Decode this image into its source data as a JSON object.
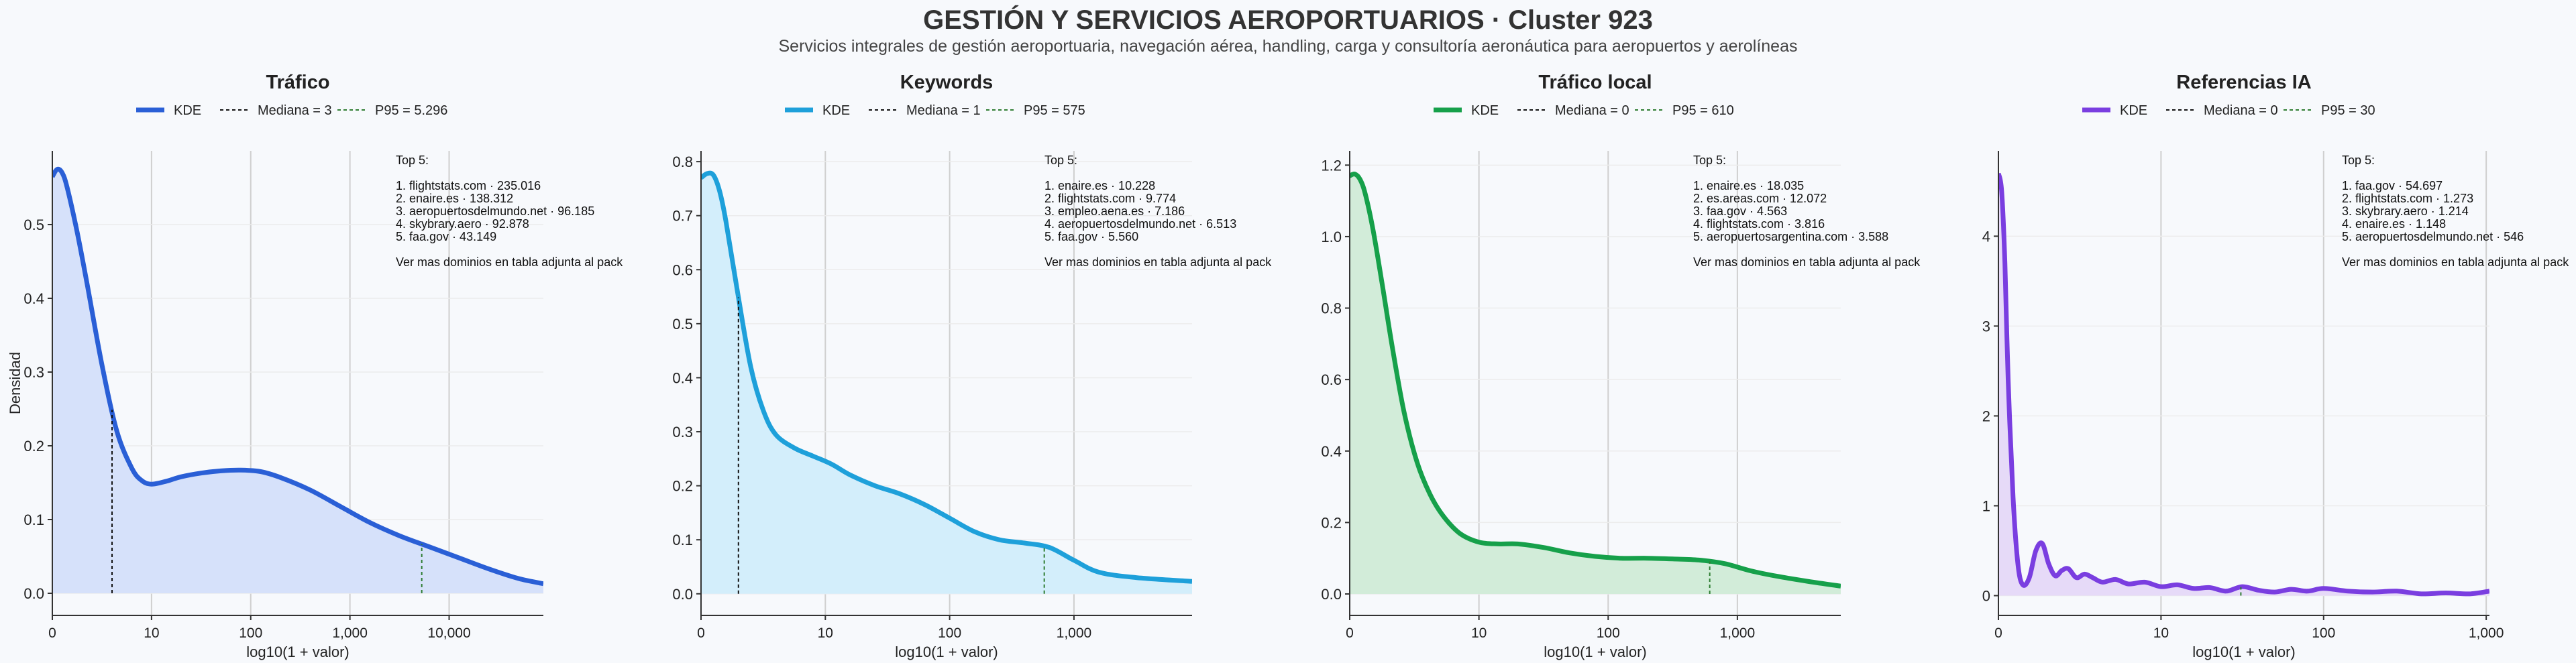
{
  "title": "GESTIÓN Y SERVICIOS AEROPORTUARIOS · Cluster 923",
  "subtitle": "Servicios integrales de gestión aeroportuaria, navegación aérea, handling, carga y consultoría aeronáutica para aeropuertos y aerolíneas",
  "chart_data": [
    {
      "type": "area",
      "title": "Tráfico",
      "color": "#2a5fd6",
      "fill": "#d6e1fa",
      "xlabel": "log10(1 + valor)",
      "ylabel": "Densidad",
      "xlim": [
        0,
        4.95
      ],
      "ylim": [
        -0.03,
        0.6
      ],
      "xticks": [
        0,
        1,
        2,
        3,
        4
      ],
      "xtick_labels": [
        "0",
        "10",
        "100",
        "1,000",
        "10,000"
      ],
      "yticks": [
        0.0,
        0.1,
        0.2,
        0.3,
        0.4,
        0.5
      ],
      "ytick_labels": [
        "0.0",
        "0.1",
        "0.2",
        "0.3",
        "0.4",
        "0.5"
      ],
      "legend": {
        "kde": "KDE",
        "median": "Mediana = 3",
        "p95": "P95 = 5.296"
      },
      "median_x": 0.602,
      "p95_x": 3.724,
      "x": [
        0,
        0.05,
        0.1,
        0.15,
        0.25,
        0.35,
        0.5,
        0.65,
        0.8,
        0.9,
        1.0,
        1.15,
        1.3,
        1.5,
        1.7,
        1.9,
        2.1,
        2.3,
        2.6,
        2.9,
        3.2,
        3.5,
        3.8,
        4.1,
        4.4,
        4.7,
        4.95
      ],
      "y": [
        0.565,
        0.575,
        0.57,
        0.55,
        0.49,
        0.42,
        0.31,
        0.22,
        0.17,
        0.153,
        0.148,
        0.152,
        0.158,
        0.163,
        0.166,
        0.167,
        0.165,
        0.157,
        0.14,
        0.118,
        0.096,
        0.078,
        0.063,
        0.048,
        0.033,
        0.02,
        0.013
      ],
      "top_header": "Top 5:",
      "top": [
        "1. flightstats.com · 235.016",
        "2. enaire.es · 138.312",
        "3. aeropuertosdelmundo.net · 96.185",
        "4. skybrary.aero · 92.878",
        "5. faa.gov · 43.149"
      ],
      "note": "Ver mas dominios en tabla adjunta al pack"
    },
    {
      "type": "area",
      "title": "Keywords",
      "color": "#1ea0da",
      "fill": "#d3eefb",
      "xlabel": "log10(1 + valor)",
      "ylabel": "",
      "xlim": [
        0,
        3.95
      ],
      "ylim": [
        -0.04,
        0.82
      ],
      "xticks": [
        0,
        1,
        2,
        3
      ],
      "xtick_labels": [
        "0",
        "10",
        "100",
        "1,000"
      ],
      "yticks": [
        0.0,
        0.1,
        0.2,
        0.3,
        0.4,
        0.5,
        0.6,
        0.7,
        0.8
      ],
      "ytick_labels": [
        "0.0",
        "0.1",
        "0.2",
        "0.3",
        "0.4",
        "0.5",
        "0.6",
        "0.7",
        "0.8"
      ],
      "legend": {
        "kde": "KDE",
        "median": "Mediana = 1",
        "p95": "P95 = 575"
      },
      "median_x": 0.301,
      "p95_x": 2.761,
      "x": [
        0,
        0.05,
        0.1,
        0.15,
        0.2,
        0.3,
        0.4,
        0.5,
        0.6,
        0.75,
        0.9,
        1.05,
        1.2,
        1.4,
        1.6,
        1.8,
        2.0,
        2.2,
        2.4,
        2.6,
        2.8,
        3.0,
        3.2,
        3.5,
        3.95
      ],
      "y": [
        0.77,
        0.778,
        0.775,
        0.745,
        0.69,
        0.55,
        0.42,
        0.34,
        0.295,
        0.27,
        0.255,
        0.24,
        0.22,
        0.2,
        0.185,
        0.165,
        0.14,
        0.115,
        0.1,
        0.094,
        0.086,
        0.062,
        0.04,
        0.03,
        0.023
      ],
      "top_header": "Top 5:",
      "top": [
        "1. enaire.es · 10.228",
        "2. flightstats.com · 9.774",
        "3. empleo.aena.es · 7.186",
        "4. aeropuertosdelmundo.net · 6.513",
        "5. faa.gov · 5.560"
      ],
      "note": "Ver mas dominios en tabla adjunta al pack"
    },
    {
      "type": "area",
      "title": "Tráfico local",
      "color": "#16a04a",
      "fill": "#d2ecd9",
      "xlabel": "log10(1 + valor)",
      "ylabel": "",
      "xlim": [
        0,
        3.8
      ],
      "ylim": [
        -0.06,
        1.24
      ],
      "xticks": [
        0,
        1,
        2,
        3
      ],
      "xtick_labels": [
        "0",
        "10",
        "100",
        "1,000"
      ],
      "yticks": [
        0.0,
        0.2,
        0.4,
        0.6,
        0.8,
        1.0,
        1.2
      ],
      "ytick_labels": [
        "0.0",
        "0.2",
        "0.4",
        "0.6",
        "0.8",
        "1.0",
        "1.2"
      ],
      "legend": {
        "kde": "KDE",
        "median": "Mediana = 0",
        "p95": "P95 = 610"
      },
      "median_x": 0,
      "p95_x": 2.786,
      "x": [
        0,
        0.04,
        0.08,
        0.12,
        0.18,
        0.25,
        0.33,
        0.42,
        0.52,
        0.62,
        0.72,
        0.85,
        1.0,
        1.15,
        1.3,
        1.5,
        1.7,
        1.9,
        2.1,
        2.3,
        2.5,
        2.7,
        2.9,
        3.1,
        3.3,
        3.55,
        3.8
      ],
      "y": [
        1.17,
        1.175,
        1.16,
        1.12,
        1.02,
        0.87,
        0.69,
        0.51,
        0.37,
        0.28,
        0.22,
        0.17,
        0.145,
        0.14,
        0.14,
        0.13,
        0.115,
        0.105,
        0.1,
        0.1,
        0.098,
        0.095,
        0.085,
        0.065,
        0.05,
        0.035,
        0.022
      ],
      "top_header": "Top 5:",
      "top": [
        "1. enaire.es · 18.035",
        "2. es.areas.com · 12.072",
        "3. faa.gov · 4.563",
        "4. flightstats.com · 3.816",
        "5. aeropuertosargentina.com · 3.588"
      ],
      "note": "Ver mas dominios en tabla adjunta al pack"
    },
    {
      "type": "area",
      "title": "Referencias IA",
      "color": "#7a3ee0",
      "fill": "#e6daf8",
      "xlabel": "log10(1 + valor)",
      "ylabel": "",
      "xlim": [
        0,
        3.02
      ],
      "ylim": [
        -0.22,
        4.95
      ],
      "xticks": [
        0,
        1,
        2,
        3
      ],
      "xtick_labels": [
        "0",
        "10",
        "100",
        "1,000"
      ],
      "yticks": [
        0,
        1,
        2,
        3,
        4
      ],
      "ytick_labels": [
        "0",
        "1",
        "2",
        "3",
        "4"
      ],
      "legend": {
        "kde": "KDE",
        "median": "Mediana = 0",
        "p95": "P95 = 30"
      },
      "median_x": 0,
      "p95_x": 1.491,
      "x": [
        0,
        0.02,
        0.04,
        0.06,
        0.09,
        0.12,
        0.15,
        0.19,
        0.23,
        0.27,
        0.31,
        0.35,
        0.39,
        0.43,
        0.48,
        0.53,
        0.58,
        0.64,
        0.72,
        0.8,
        0.9,
        1.0,
        1.1,
        1.2,
        1.3,
        1.4,
        1.5,
        1.6,
        1.7,
        1.8,
        1.9,
        2.0,
        2.15,
        2.3,
        2.45,
        2.6,
        2.75,
        2.9,
        3.02
      ],
      "y": [
        4.7,
        4.5,
        3.7,
        2.4,
        1.1,
        0.35,
        0.12,
        0.2,
        0.5,
        0.58,
        0.35,
        0.22,
        0.28,
        0.3,
        0.2,
        0.24,
        0.2,
        0.15,
        0.18,
        0.13,
        0.15,
        0.1,
        0.12,
        0.08,
        0.09,
        0.05,
        0.1,
        0.06,
        0.04,
        0.07,
        0.05,
        0.08,
        0.05,
        0.04,
        0.05,
        0.02,
        0.03,
        0.02,
        0.05
      ],
      "top_header": "Top 5:",
      "top": [
        "1. faa.gov · 54.697",
        "2. flightstats.com · 1.273",
        "3. skybrary.aero · 1.214",
        "4. enaire.es · 1.148",
        "5. aeropuertosdelmundo.net · 546"
      ],
      "note": "Ver mas dominios en tabla adjunta al pack"
    }
  ]
}
